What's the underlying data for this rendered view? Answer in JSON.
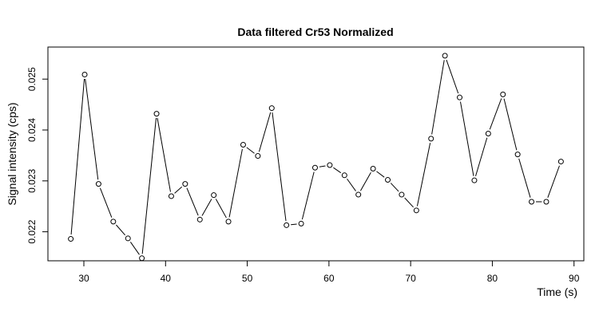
{
  "chart_data": {
    "type": "line",
    "title": "Data filtered Cr53 Normalized",
    "xlabel": "Time (s)",
    "ylabel": "Signal intensity (cps)",
    "xlim": [
      25.6,
      91.2
    ],
    "ylim": [
      0.02143,
      0.02563
    ],
    "xticks": [
      30,
      40,
      50,
      60,
      70,
      80,
      90
    ],
    "xtick_labels": [
      "30",
      "40",
      "50",
      "60",
      "70",
      "80",
      "90"
    ],
    "yticks": [
      0.022,
      0.023,
      0.024,
      0.025
    ],
    "ytick_labels": [
      "0.022",
      "0.023",
      "0.024",
      "0.025"
    ],
    "grid": false,
    "line_color": "#000000",
    "marker": "open-circle",
    "x": [
      28.4,
      30.1,
      31.8,
      33.6,
      35.4,
      37.1,
      38.9,
      40.7,
      42.4,
      44.2,
      45.9,
      47.7,
      49.5,
      51.3,
      53.0,
      54.8,
      56.6,
      58.3,
      60.1,
      61.9,
      63.6,
      65.4,
      67.2,
      68.9,
      70.7,
      72.5,
      74.2,
      76.0,
      77.8,
      79.5,
      81.3,
      83.1,
      84.8,
      86.6,
      88.4
    ],
    "y": [
      0.02186,
      0.02509,
      0.02294,
      0.0222,
      0.02187,
      0.02148,
      0.02432,
      0.0227,
      0.02294,
      0.02224,
      0.02272,
      0.0222,
      0.02371,
      0.02349,
      0.02443,
      0.02213,
      0.02216,
      0.02326,
      0.02331,
      0.02311,
      0.02273,
      0.02324,
      0.02302,
      0.02273,
      0.02242,
      0.02383,
      0.02546,
      0.02464,
      0.02301,
      0.02393,
      0.0247,
      0.02352,
      0.02259,
      0.02259,
      0.02338
    ]
  }
}
